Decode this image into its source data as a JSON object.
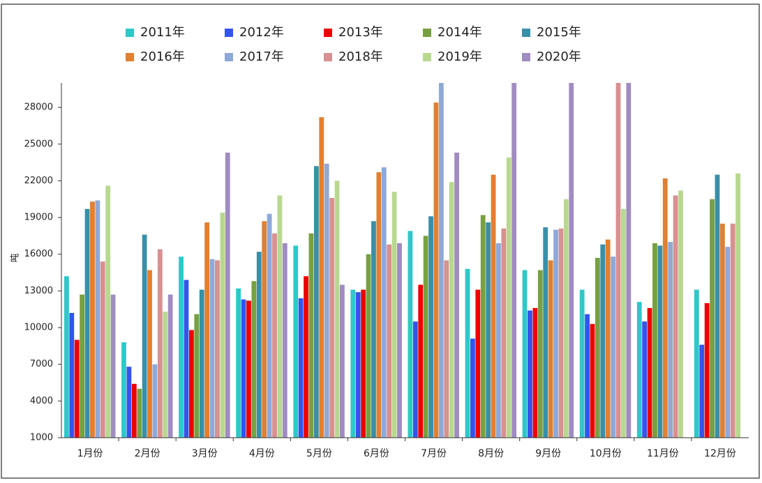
{
  "chart_data": {
    "type": "bar",
    "y_label": "吨",
    "categories": [
      "1月份",
      "2月份",
      "3月份",
      "4月份",
      "5月份",
      "6月份",
      "7月份",
      "8月份",
      "9月份",
      "10月份",
      "11月份",
      "12月份"
    ],
    "series": [
      {
        "name": "2011年",
        "color": "#2ec8c8",
        "values": [
          14200,
          8800,
          15800,
          13200,
          16700,
          13100,
          17900,
          14800,
          14700,
          13100,
          12100,
          13100
        ]
      },
      {
        "name": "2012年",
        "color": "#3355ee",
        "values": [
          11200,
          6800,
          13900,
          12300,
          12400,
          12900,
          10500,
          9100,
          11400,
          11100,
          10500,
          8600
        ]
      },
      {
        "name": "2013年",
        "color": "#ee0000",
        "values": [
          9000,
          5400,
          9800,
          12200,
          14200,
          13100,
          13500,
          13100,
          11600,
          10300,
          11600,
          12000
        ]
      },
      {
        "name": "2014年",
        "color": "#77a040",
        "values": [
          12700,
          5000,
          11100,
          13800,
          17700,
          16000,
          17500,
          19200,
          14700,
          15700,
          16900,
          20500
        ]
      },
      {
        "name": "2015年",
        "color": "#3a8fa8",
        "values": [
          19700,
          17600,
          13100,
          16200,
          23200,
          18700,
          19100,
          18600,
          18200,
          16800,
          16700,
          22500
        ]
      },
      {
        "name": "2016年",
        "color": "#e08030",
        "values": [
          20300,
          14700,
          18600,
          18700,
          27200,
          22700,
          28400,
          22500,
          15500,
          17200,
          22200,
          18500
        ]
      },
      {
        "name": "2017年",
        "color": "#8ea8d8",
        "values": [
          20400,
          7000,
          15600,
          19300,
          23400,
          23100,
          30000,
          16900,
          18000,
          15800,
          17000,
          16600
        ]
      },
      {
        "name": "2018年",
        "color": "#d89090",
        "values": [
          15400,
          16400,
          15500,
          17700,
          20600,
          16800,
          15500,
          18100,
          18100,
          30000,
          20800,
          18500
        ]
      },
      {
        "name": "2019年",
        "color": "#b8d890",
        "values": [
          21600,
          11300,
          19400,
          20800,
          22000,
          21100,
          21900,
          23900,
          20500,
          19700,
          21200,
          22600
        ]
      },
      {
        "name": "2020年",
        "color": "#a08cc0",
        "values": [
          12700,
          12700,
          24300,
          16900,
          13500,
          16900,
          24300,
          30000,
          30000,
          30000,
          null,
          null
        ]
      }
    ],
    "ylim": [
      1000,
      30000
    ],
    "yticks": [
      1000,
      4000,
      7000,
      10000,
      13000,
      16000,
      19000,
      22000,
      25000,
      28000
    ]
  }
}
